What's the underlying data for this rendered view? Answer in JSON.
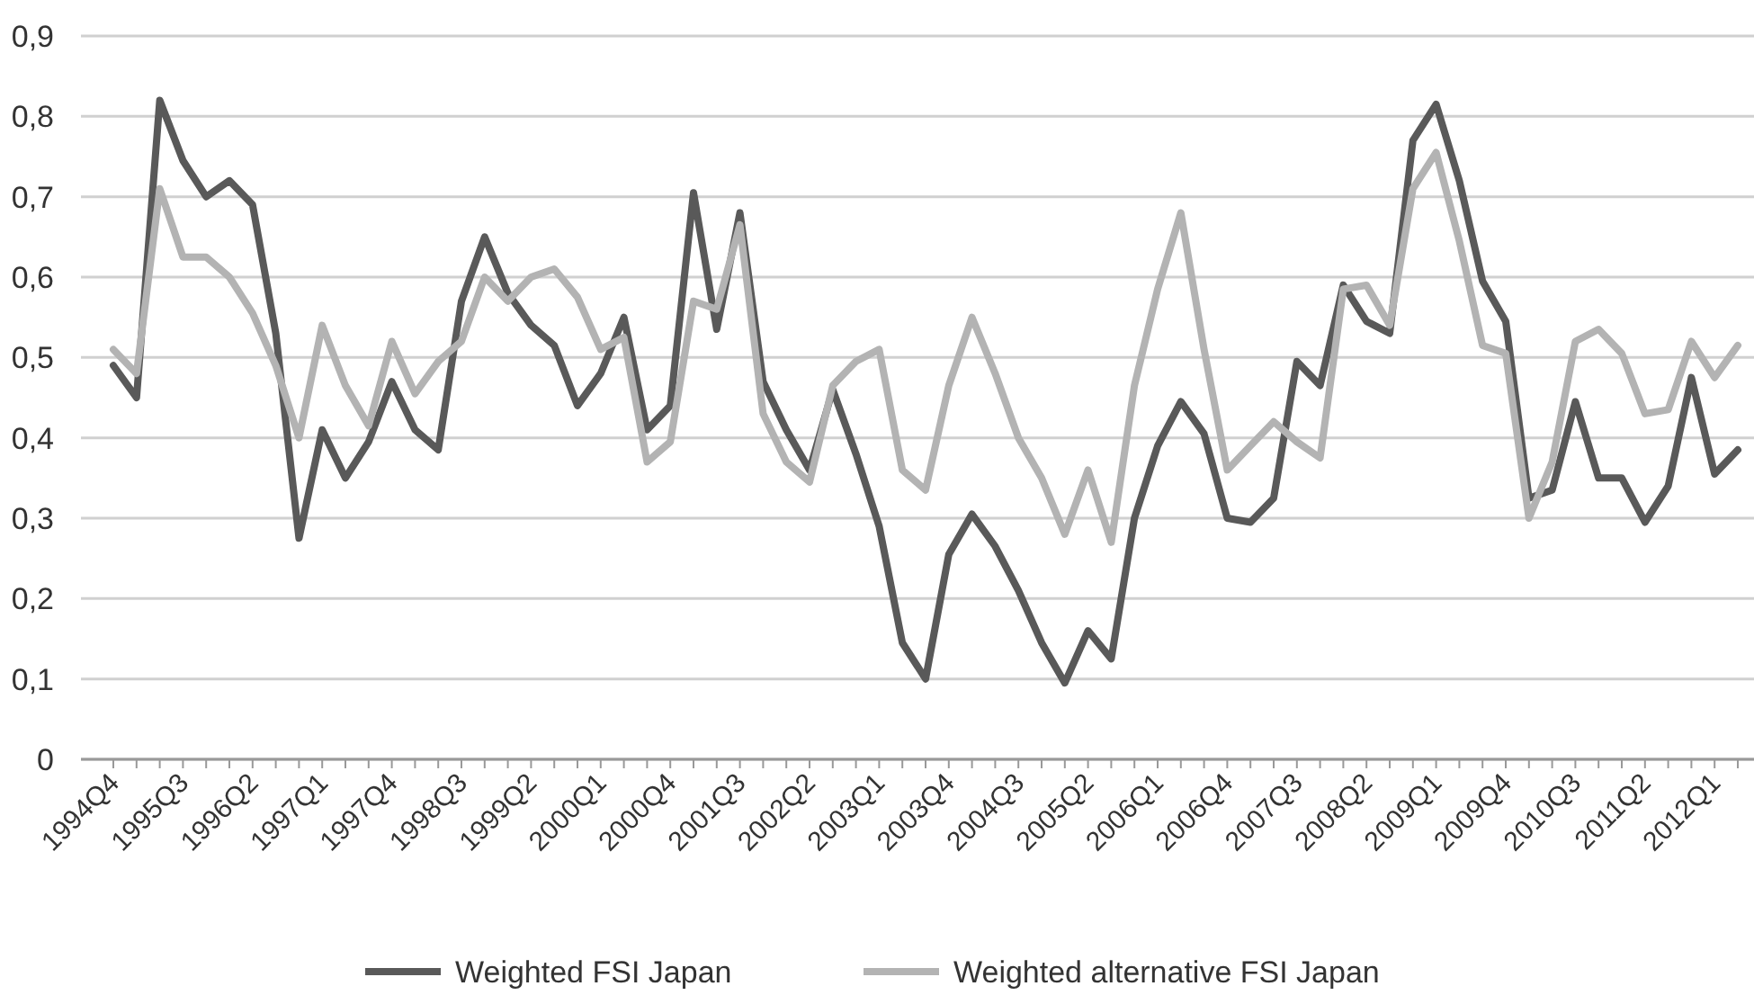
{
  "chart_data": {
    "type": "line",
    "categories": [
      "1994Q4",
      null,
      null,
      "1995Q3",
      null,
      null,
      "1996Q2",
      null,
      null,
      "1997Q1",
      null,
      null,
      "1997Q4",
      null,
      null,
      "1998Q3",
      null,
      null,
      "1999Q2",
      null,
      null,
      "2000Q1",
      null,
      null,
      "2000Q4",
      null,
      null,
      "2001Q3",
      null,
      null,
      "2002Q2",
      null,
      null,
      "2003Q1",
      null,
      null,
      "2003Q4",
      null,
      null,
      "2004Q3",
      null,
      null,
      "2005Q2",
      null,
      null,
      "2006Q1",
      null,
      null,
      "2006Q4",
      null,
      null,
      "2007Q3",
      null,
      null,
      "2008Q2",
      null,
      null,
      "2009Q1",
      null,
      null,
      "2009Q4",
      null,
      null,
      "2010Q3",
      null,
      null,
      "2011Q2",
      null,
      null,
      "2012Q1",
      null
    ],
    "series": [
      {
        "name": "Weighted FSI Japan",
        "color": "#595959",
        "values": [
          0.49,
          0.45,
          0.82,
          0.745,
          0.7,
          0.72,
          0.69,
          0.53,
          0.275,
          0.41,
          0.35,
          0.395,
          0.47,
          0.41,
          0.385,
          0.57,
          0.65,
          0.58,
          0.54,
          0.515,
          0.44,
          0.48,
          0.55,
          0.41,
          0.44,
          0.705,
          0.535,
          0.68,
          0.47,
          0.41,
          0.36,
          0.46,
          0.38,
          0.29,
          0.145,
          0.1,
          0.255,
          0.305,
          0.265,
          0.21,
          0.145,
          0.095,
          0.16,
          0.125,
          0.3,
          0.39,
          0.445,
          0.405,
          0.3,
          0.295,
          0.325,
          0.495,
          0.465,
          0.59,
          0.545,
          0.53,
          0.77,
          0.815,
          0.72,
          0.595,
          0.545,
          0.325,
          0.335,
          0.445,
          0.35,
          0.35,
          0.295,
          0.34,
          0.475,
          0.355,
          0.385
        ]
      },
      {
        "name": "Weighted alternative FSI Japan",
        "color": "#b3b3b3",
        "values": [
          0.51,
          0.48,
          0.71,
          0.625,
          0.625,
          0.6,
          0.555,
          0.49,
          0.4,
          0.54,
          0.465,
          0.415,
          0.52,
          0.455,
          0.495,
          0.52,
          0.6,
          0.57,
          0.6,
          0.61,
          0.575,
          0.51,
          0.525,
          0.37,
          0.395,
          0.57,
          0.56,
          0.665,
          0.43,
          0.37,
          0.345,
          0.465,
          0.495,
          0.51,
          0.36,
          0.335,
          0.465,
          0.55,
          0.48,
          0.4,
          0.35,
          0.28,
          0.36,
          0.27,
          0.465,
          0.585,
          0.68,
          0.51,
          0.36,
          0.39,
          0.42,
          0.395,
          0.375,
          0.585,
          0.59,
          0.54,
          0.71,
          0.755,
          0.645,
          0.515,
          0.505,
          0.3,
          0.37,
          0.52,
          0.535,
          0.505,
          0.43,
          0.435,
          0.52,
          0.475,
          0.515
        ]
      }
    ],
    "ylim": [
      0,
      0.9
    ],
    "yticks": [
      {
        "value": 0,
        "label": "0"
      },
      {
        "value": 0.1,
        "label": "0,1"
      },
      {
        "value": 0.2,
        "label": "0,2"
      },
      {
        "value": 0.3,
        "label": "0,3"
      },
      {
        "value": 0.4,
        "label": "0,4"
      },
      {
        "value": 0.5,
        "label": "0,5"
      },
      {
        "value": 0.6,
        "label": "0,6"
      },
      {
        "value": 0.7,
        "label": "0,7"
      },
      {
        "value": 0.8,
        "label": "0,8"
      },
      {
        "value": 0.9,
        "label": "0,9"
      }
    ],
    "grid": "y",
    "legend": "bottom",
    "marker": "none",
    "line_style": "solid"
  }
}
